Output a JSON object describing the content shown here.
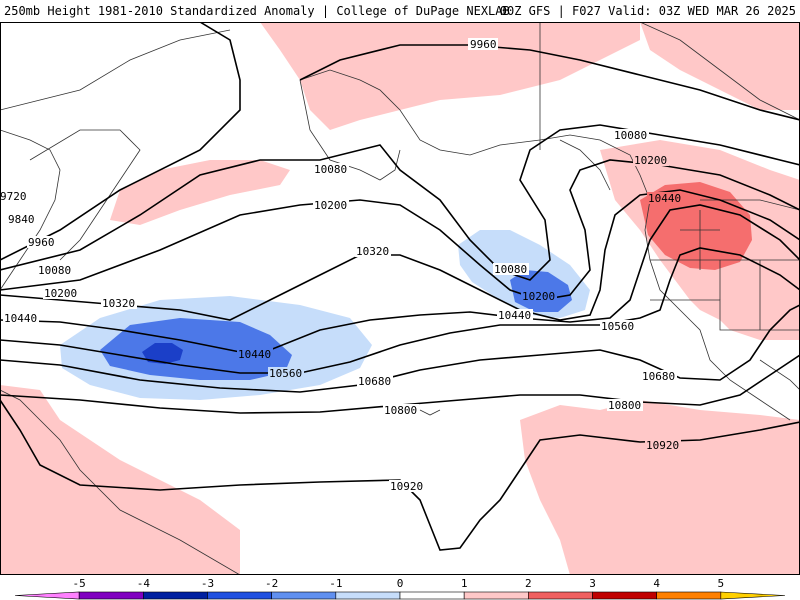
{
  "header": {
    "title_left": "250mb Height 1981-2010 Standardized Anomaly | College of DuPage NEXLAB",
    "title_right": "00Z GFS | F027 Valid: 03Z WED MAR 26 2025"
  },
  "colors": {
    "anom_pos_1": "#ffc8c8",
    "anom_pos_2": "#f56e6e",
    "anom_pos_3": "#c80000",
    "anom_neg_1": "#c6ddfa",
    "anom_neg_2": "#4c78e8",
    "anom_neg_3": "#1b3fc8",
    "contour": "#000000",
    "coast": "#333333"
  },
  "contours": [
    {
      "value": "9960",
      "label_left": "9960"
    },
    {
      "value": "10080",
      "label_left": "10080"
    },
    {
      "value": "10200",
      "label_left": "10200"
    },
    {
      "value": "10320",
      "label_left": "10320"
    },
    {
      "value": "10440",
      "label_left": "10440"
    },
    {
      "value": "10560",
      "label_left": "10560"
    },
    {
      "value": "10680",
      "label_left": "10680"
    },
    {
      "value": "10800",
      "label_left": "10800"
    },
    {
      "value": "10920",
      "label_left": "10920"
    }
  ],
  "left_labels": [
    "9720",
    "9840",
    "9960",
    "10080",
    "10200",
    "10440"
  ],
  "colorbar": {
    "ticks": [
      "-5",
      "-4",
      "-3",
      "-2",
      "-1",
      "0",
      "1",
      "2",
      "3",
      "4",
      "5"
    ],
    "segments": [
      {
        "color": "#ff80ff"
      },
      {
        "color": "#8000c0"
      },
      {
        "color": "#0020a0"
      },
      {
        "color": "#2050e0"
      },
      {
        "color": "#6090f0"
      },
      {
        "color": "#c6ddfa"
      },
      {
        "color": "#ffffff"
      },
      {
        "color": "#ffc8c8"
      },
      {
        "color": "#f06060"
      },
      {
        "color": "#c00000"
      },
      {
        "color": "#ff8000"
      },
      {
        "color": "#ffd000"
      }
    ]
  }
}
